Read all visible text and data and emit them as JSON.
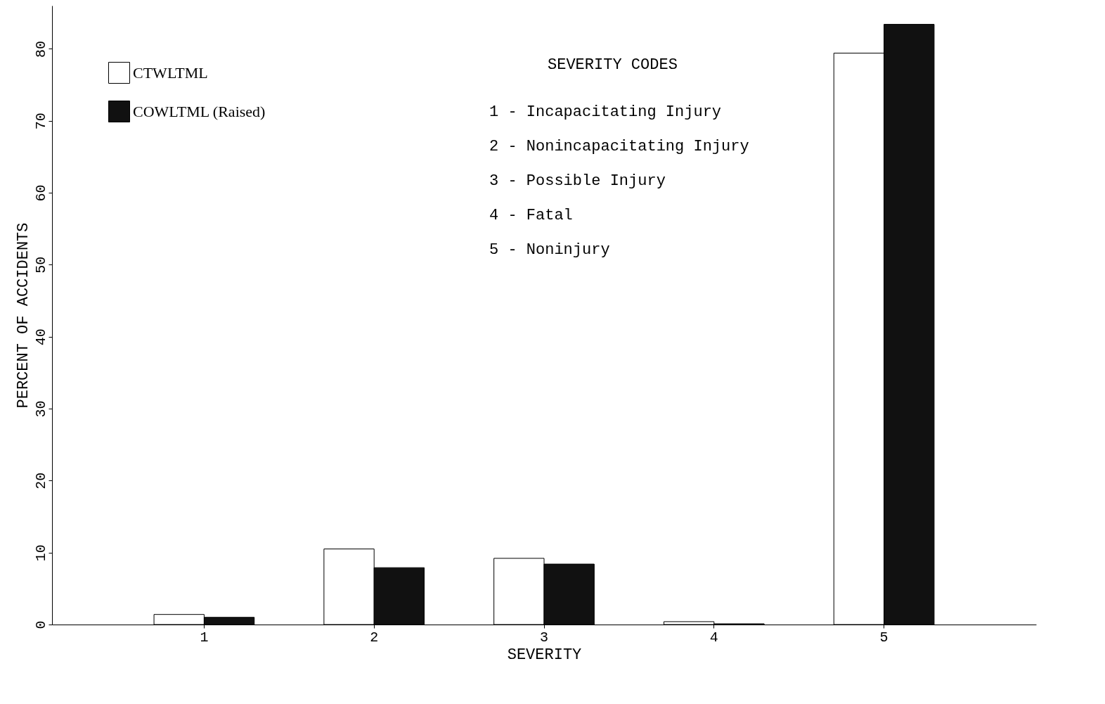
{
  "chart_data": {
    "type": "bar",
    "xlabel": "SEVERITY",
    "ylabel": "PERCENT OF ACCIDENTS",
    "categories": [
      "1",
      "2",
      "3",
      "4",
      "5"
    ],
    "series": [
      {
        "name": "CTWLTML",
        "color": "#ffffff",
        "values": [
          1.4,
          10.5,
          9.2,
          0.4,
          79.4
        ]
      },
      {
        "name": "COWLTML (Raised)",
        "color": "#111111",
        "values": [
          1.0,
          7.9,
          8.4,
          0.1,
          83.4
        ]
      }
    ],
    "ylim": [
      0,
      86
    ],
    "yticks": [
      0,
      10,
      20,
      30,
      40,
      50,
      60,
      70,
      80
    ],
    "grid": false,
    "legend": "top left",
    "annotations": [
      "SEVERITY CODES",
      "1 - Incapacitating Injury",
      "2 - Nonincapacitating Injury",
      "3 - Possible Injury",
      "4 - Fatal",
      "5 - Noninjury"
    ]
  }
}
